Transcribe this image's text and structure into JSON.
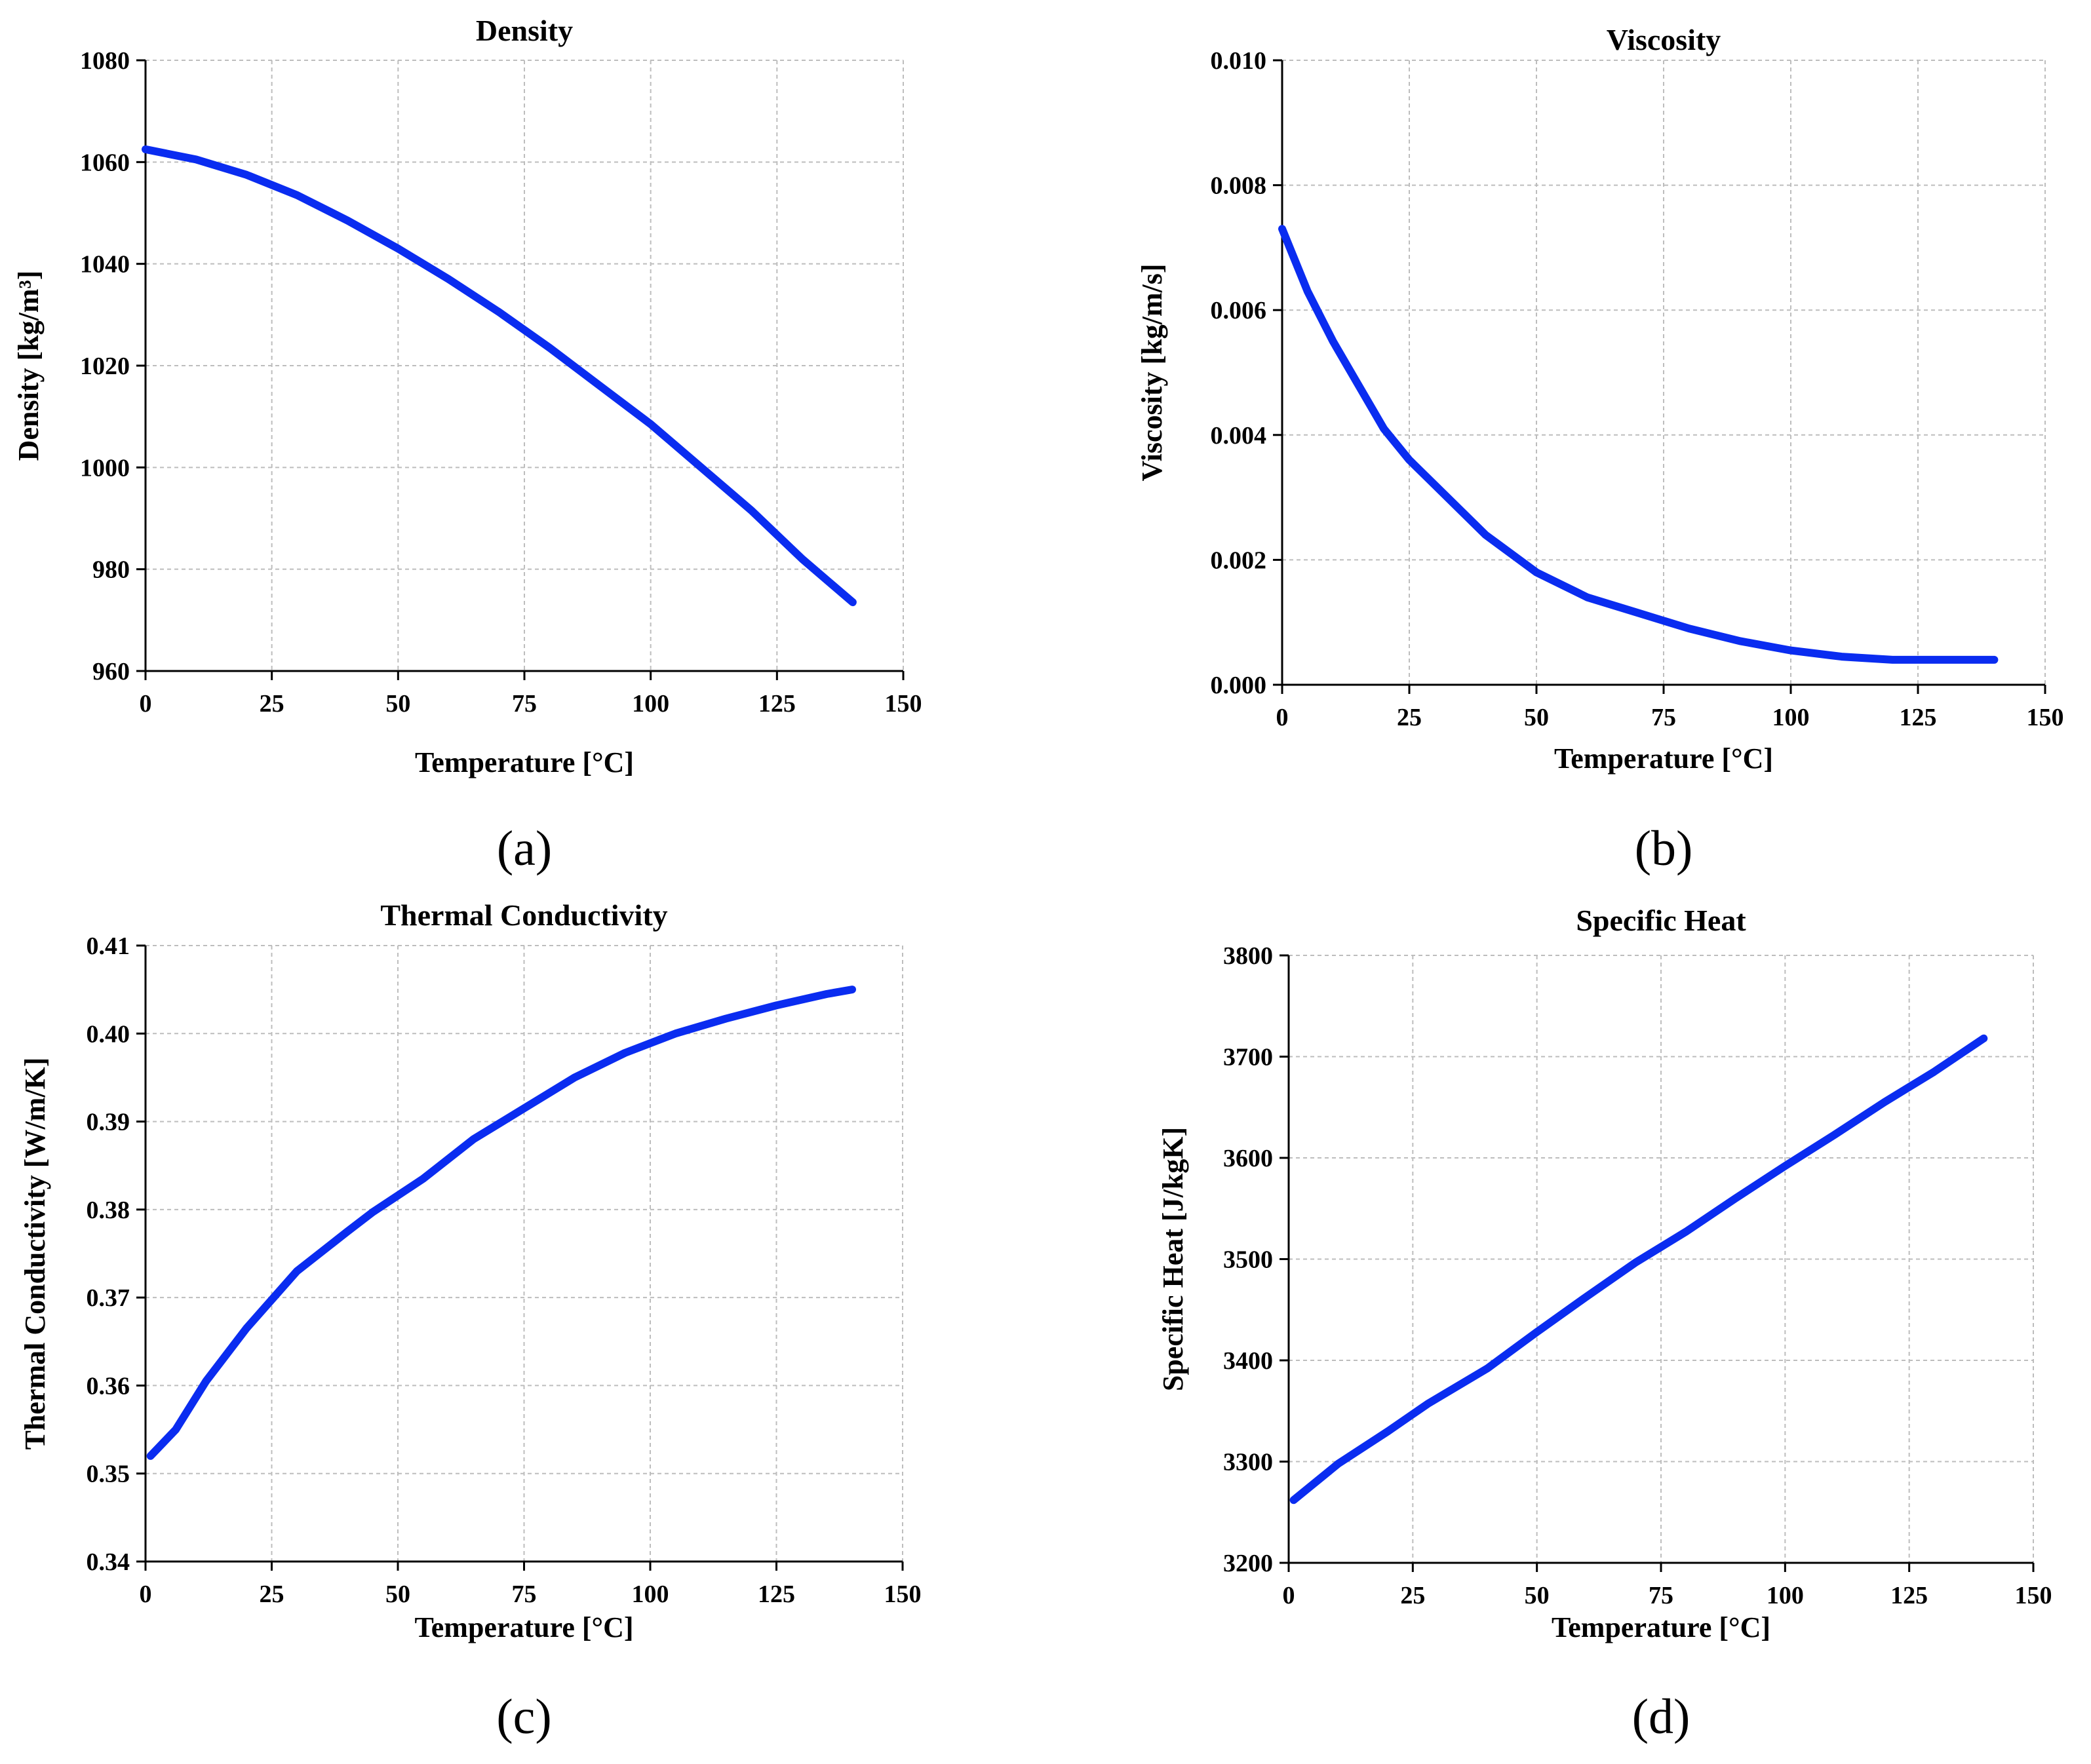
{
  "colors": {
    "line": "#0a2cf0",
    "axis": "#000000",
    "grid": "#bdbdbd"
  },
  "chart_data": [
    {
      "type": "line",
      "panel_label": "(a)",
      "title": "Density",
      "xlabel": "Temperature [°C]",
      "ylabel": "Density [kg/m³]",
      "xlim": [
        0,
        150
      ],
      "ylim": [
        960,
        1080
      ],
      "xticks": [
        0,
        25,
        50,
        75,
        100,
        125,
        150
      ],
      "yticks": [
        960,
        980,
        1000,
        1020,
        1040,
        1060,
        1080
      ],
      "xtick_labels": [
        "0",
        "25",
        "50",
        "75",
        "100",
        "125",
        "150"
      ],
      "ytick_labels": [
        "960",
        "980",
        "1000",
        "1020",
        "1040",
        "1060",
        "1080"
      ],
      "grid": true,
      "series": [
        {
          "name": "Density",
          "x": [
            0,
            10,
            20,
            30,
            40,
            50,
            60,
            70,
            80,
            90,
            100,
            110,
            120,
            130,
            140
          ],
          "y": [
            1062.5,
            1060.5,
            1057.5,
            1053.5,
            1048.5,
            1043,
            1037,
            1030.5,
            1023.5,
            1016,
            1008.5,
            1000,
            991.5,
            982,
            973.5
          ]
        }
      ]
    },
    {
      "type": "line",
      "panel_label": "(b)",
      "title": "Viscosity",
      "xlabel": "Temperature [°C]",
      "ylabel": "Viscosity [kg/m/s]",
      "xlim": [
        0,
        150
      ],
      "ylim": [
        0,
        0.01
      ],
      "xticks": [
        0,
        25,
        50,
        75,
        100,
        125,
        150
      ],
      "yticks": [
        0,
        0.002,
        0.004,
        0.006,
        0.008,
        0.01
      ],
      "xtick_labels": [
        "0",
        "25",
        "50",
        "75",
        "100",
        "125",
        "150"
      ],
      "ytick_labels": [
        "0.000",
        "0.002",
        "0.004",
        "0.006",
        "0.008",
        "0.010"
      ],
      "grid": true,
      "series": [
        {
          "name": "Viscosity",
          "x": [
            0,
            5,
            10,
            15,
            20,
            25,
            30,
            40,
            50,
            60,
            70,
            80,
            90,
            100,
            110,
            120,
            130,
            140
          ],
          "y": [
            0.0073,
            0.0063,
            0.0055,
            0.0048,
            0.0041,
            0.0036,
            0.0032,
            0.0024,
            0.0018,
            0.0014,
            0.00115,
            0.0009,
            0.0007,
            0.00055,
            0.00045,
            0.0004,
            0.0004,
            0.0004
          ]
        }
      ]
    },
    {
      "type": "line",
      "panel_label": "(c)",
      "title": "Thermal Conductivity",
      "xlabel": "Temperature [°C]",
      "ylabel": "Thermal Conductivity [W/m/K]",
      "xlim": [
        0,
        150
      ],
      "ylim": [
        0.34,
        0.41
      ],
      "xticks": [
        0,
        25,
        50,
        75,
        100,
        125,
        150
      ],
      "yticks": [
        0.34,
        0.35,
        0.36,
        0.37,
        0.38,
        0.39,
        0.4,
        0.41
      ],
      "xtick_labels": [
        "0",
        "25",
        "50",
        "75",
        "100",
        "125",
        "150"
      ],
      "ytick_labels": [
        "0.34",
        "0.35",
        "0.36",
        "0.37",
        "0.38",
        "0.39",
        "0.40",
        "0.41"
      ],
      "grid": true,
      "series": [
        {
          "name": "Thermal Conductivity",
          "x": [
            1,
            6,
            12,
            20,
            30,
            40,
            45,
            55,
            65,
            75,
            85,
            95,
            105,
            115,
            125,
            135,
            140
          ],
          "y": [
            0.352,
            0.355,
            0.3605,
            0.3665,
            0.373,
            0.3775,
            0.3797,
            0.3835,
            0.388,
            0.3915,
            0.395,
            0.3978,
            0.4,
            0.4017,
            0.4032,
            0.4045,
            0.405
          ]
        }
      ]
    },
    {
      "type": "line",
      "panel_label": "(d)",
      "title": "Specific Heat",
      "xlabel": "Temperature [°C]",
      "ylabel": "Specific Heat [J/kgK]",
      "xlim": [
        0,
        150
      ],
      "ylim": [
        3200,
        3800
      ],
      "xticks": [
        0,
        25,
        50,
        75,
        100,
        125,
        150
      ],
      "yticks": [
        3200,
        3300,
        3400,
        3500,
        3600,
        3700,
        3800
      ],
      "xtick_labels": [
        "0",
        "25",
        "50",
        "75",
        "100",
        "125",
        "150"
      ],
      "ytick_labels": [
        "3200",
        "3300",
        "3400",
        "3500",
        "3600",
        "3700",
        "3800"
      ],
      "grid": true,
      "series": [
        {
          "name": "Specific Heat",
          "x": [
            1,
            10,
            20,
            28,
            40,
            50,
            60,
            70,
            80,
            90,
            100,
            110,
            120,
            130,
            140
          ],
          "y": [
            3262,
            3298,
            3330,
            3357,
            3392,
            3428,
            3463,
            3497,
            3527,
            3560,
            3592,
            3623,
            3655,
            3685,
            3718
          ]
        }
      ]
    }
  ]
}
